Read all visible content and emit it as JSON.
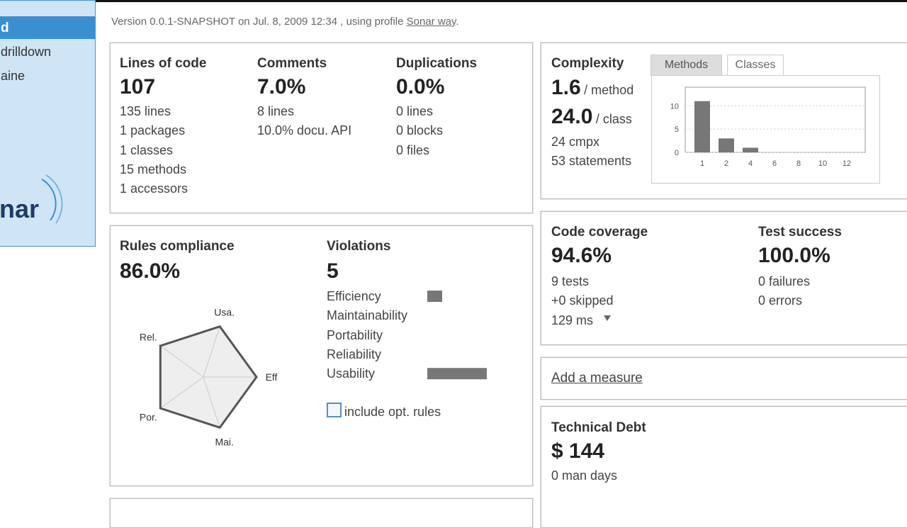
{
  "sidebar": {
    "items": [
      "d",
      "drilldown",
      "aine"
    ],
    "logo": "nar"
  },
  "header": {
    "version_line": "Version 0.0.1-SNAPSHOT on Jul. 8, 2009 12:34 , using profile",
    "profile_link": "Sonar way",
    "end": "."
  },
  "size": {
    "columns": [
      {
        "title": "Lines of code",
        "value": "107",
        "details": [
          "135 lines",
          "1 packages",
          "1 classes",
          "15 methods",
          "1 accessors"
        ]
      },
      {
        "title": "Comments",
        "value": "7.0%",
        "details": [
          "8 lines",
          "10.0% docu. API"
        ]
      },
      {
        "title": "Duplications",
        "value": "0.0%",
        "details": [
          "0 lines",
          "0 blocks",
          "0 files"
        ]
      }
    ]
  },
  "complexity": {
    "title": "Complexity",
    "method_value": "1.6",
    "method_unit": "/ method",
    "class_value": "24.0",
    "class_unit": "/ class",
    "details": [
      "24 cmpx",
      "53 statements"
    ],
    "tabs": [
      "Methods",
      "Classes"
    ],
    "chart": {
      "type": "bar",
      "categories": [
        "1",
        "2",
        "4",
        "6",
        "8",
        "10",
        "12"
      ],
      "values": [
        11,
        3,
        1,
        0,
        0,
        0,
        0
      ],
      "color": "#777777",
      "ylim": [
        0,
        14
      ],
      "yticks": [
        0,
        5,
        10
      ],
      "grid": true
    }
  },
  "rules": {
    "title": "Rules compliance",
    "value": "86.0%",
    "radar": {
      "type": "radar",
      "axes": [
        "Eff",
        "Mai.",
        "Por.",
        "Rel.",
        "Usa."
      ],
      "values": [
        100,
        100,
        100,
        100,
        100
      ],
      "rlim": [
        0,
        100
      ]
    }
  },
  "violations": {
    "title": "Violations",
    "value": "5",
    "chart": {
      "type": "bar",
      "categories": [
        "Efficiency",
        "Maintainability",
        "Portability",
        "Reliability",
        "Usability"
      ],
      "values": [
        1,
        0,
        0,
        0,
        4
      ],
      "xlim": [
        0,
        4
      ],
      "color": "#777777"
    },
    "option": "include opt. rules"
  },
  "coverage": {
    "title": "Code coverage",
    "value": "94.6%",
    "details": [
      "9 tests",
      "+0 skipped",
      "129 ms"
    ]
  },
  "tests": {
    "title": "Test success",
    "value": "100.0%",
    "details": [
      "0 failures",
      "0 errors"
    ]
  },
  "add_measure": "Add a measure",
  "debt": {
    "title": "Technical Debt",
    "value": "$ 144",
    "details": [
      "0 man days"
    ]
  }
}
